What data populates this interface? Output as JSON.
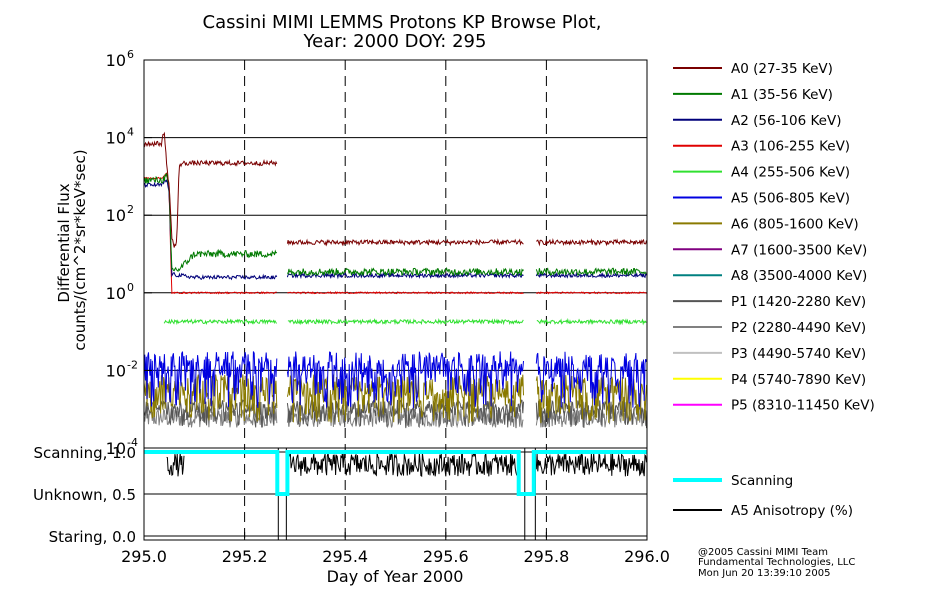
{
  "chart_data": [
    {
      "type": "line",
      "title": "Cassini MIMI LEMMS Protons KP Browse Plot,",
      "subtitle": "Year: 2000 DOY: 295",
      "ylabel_line1": "Differential Flux",
      "ylabel_line2": "counts/(cm^2*sr*keV*sec)",
      "xlim": [
        295.0,
        296.0
      ],
      "ylim": [
        0.0001,
        1000000
      ],
      "y_scale": "log",
      "y_ticks": [
        {
          "value": 0.0001,
          "base": "10",
          "exp": "-4"
        },
        {
          "value": 0.01,
          "base": "10",
          "exp": "-2"
        },
        {
          "value": 1,
          "base": "10",
          "exp": "0"
        },
        {
          "value": 100,
          "base": "10",
          "exp": "2"
        },
        {
          "value": 10000,
          "base": "10",
          "exp": "4"
        },
        {
          "value": 1000000,
          "base": "10",
          "exp": "6"
        }
      ],
      "grid": "horizontal at decades, dashed vertical at x ticks",
      "legend_position": "right",
      "data_gaps": [
        [
          295.265,
          295.285
        ],
        [
          295.755,
          295.78
        ]
      ],
      "series": [
        {
          "name": "A0 (27-35 KeV)",
          "color": "#7a0000",
          "x": [
            295.0,
            295.035,
            295.04,
            295.045,
            295.05,
            295.055,
            295.06,
            295.065,
            295.07,
            295.08,
            295.1,
            295.2,
            295.265,
            295.285,
            295.4,
            295.6,
            295.755,
            295.78,
            296.0
          ],
          "y": [
            7000,
            7000,
            16000,
            2000,
            600,
            30,
            15,
            20,
            2000,
            2200,
            2200,
            2200,
            2200,
            20,
            20,
            20,
            20,
            20,
            20
          ]
        },
        {
          "name": "A1 (35-56 KeV)",
          "color": "#007a00",
          "x": [
            295.0,
            295.035,
            295.045,
            295.05,
            295.055,
            295.07,
            295.1,
            295.2,
            295.265,
            295.285,
            295.4,
            295.6,
            295.755,
            295.78,
            296.0
          ],
          "y": [
            800,
            800,
            1000,
            500,
            4,
            4,
            10,
            10,
            10,
            3.5,
            3.5,
            3.5,
            3.5,
            3.5,
            3.5
          ]
        },
        {
          "name": "A2 (56-106 KeV)",
          "color": "#00007a",
          "x": [
            295.0,
            295.035,
            295.045,
            295.05,
            295.055,
            295.1,
            295.265,
            295.285,
            295.6,
            295.755,
            295.78,
            296.0
          ],
          "y": [
            600,
            600,
            800,
            400,
            3,
            2.5,
            2.5,
            2.8,
            2.8,
            2.8,
            2.8,
            2.8
          ]
        },
        {
          "name": "A3 (106-255 KeV)",
          "color": "#e00000",
          "x": [
            295.0,
            295.035,
            295.045,
            295.05,
            295.055,
            295.2,
            295.265,
            295.285,
            295.6,
            295.755,
            295.78,
            296.0
          ],
          "y": [
            900,
            900,
            1200,
            400,
            1.0,
            1.0,
            1.0,
            1.0,
            1.0,
            1.0,
            1.0,
            1.0
          ]
        },
        {
          "name": "A4 (255-506 KeV)",
          "color": "#30e030",
          "x": [
            295.04,
            295.265,
            295.285,
            295.755,
            295.78,
            296.0
          ],
          "y": [
            0.18,
            0.18,
            0.18,
            0.18,
            0.18,
            0.18
          ]
        },
        {
          "name": "A5 (506-805 KeV)",
          "color": "#0000e0",
          "x": [
            295.0,
            295.265,
            295.285,
            295.755,
            295.78,
            296.0
          ],
          "y": [
            0.01,
            0.01,
            0.01,
            0.01,
            0.01,
            0.01
          ]
        },
        {
          "name": "A6 (805-1600 KeV)",
          "color": "#8a7a00",
          "x": [
            295.0,
            295.265,
            295.285,
            295.755,
            295.78,
            296.0
          ],
          "y": [
            0.003,
            0.003,
            0.003,
            0.003,
            0.003,
            0.003
          ]
        },
        {
          "name": "A7 (1600-3500 KeV)",
          "color": "#800080",
          "x": [],
          "y": []
        },
        {
          "name": "A8 (3500-4000 KeV)",
          "color": "#008080",
          "x": [],
          "y": []
        },
        {
          "name": "P1 (1420-2280 KeV)",
          "color": "#555555",
          "x": [
            295.0,
            295.265,
            295.285,
            295.755,
            295.78,
            296.0
          ],
          "y": [
            0.001,
            0.001,
            0.001,
            0.001,
            0.001,
            0.001
          ]
        },
        {
          "name": "P2 (2280-4490 KeV)",
          "color": "#808080",
          "x": [
            295.0,
            295.265,
            295.285,
            295.755,
            295.78,
            296.0
          ],
          "y": [
            0.0006,
            0.0006,
            0.0006,
            0.0006,
            0.0006,
            0.0006
          ]
        },
        {
          "name": "P3 (4490-5740 KeV)",
          "color": "#c0c0c0",
          "x": [],
          "y": []
        },
        {
          "name": "P4 (5740-7890 KeV)",
          "color": "#ffff00",
          "x": [],
          "y": []
        },
        {
          "name": "P5 (8310-11450 KeV)",
          "color": "#ff00ff",
          "x": [],
          "y": []
        }
      ]
    },
    {
      "type": "line",
      "xlabel": "Day of Year 2000",
      "xlim": [
        295.0,
        296.0
      ],
      "ylim": [
        0.0,
        1.0
      ],
      "x_ticks": [
        "295.0",
        "295.2",
        "295.4",
        "295.6",
        "295.8",
        "296.0"
      ],
      "x_tick_values": [
        295.0,
        295.2,
        295.4,
        295.6,
        295.8,
        296.0
      ],
      "y_ticks": [
        {
          "value": 1.0,
          "label": "Scanning, 1.0"
        },
        {
          "value": 0.5,
          "label": "Unknown, 0.5"
        },
        {
          "value": 0.0,
          "label": "Staring, 0.0"
        }
      ],
      "legend_position": "right",
      "series": [
        {
          "name": "Scanning",
          "color": "#00ffff",
          "x": [
            295.0,
            295.265,
            295.265,
            295.285,
            295.285,
            295.745,
            295.745,
            295.775,
            295.775,
            296.0
          ],
          "y": [
            1.0,
            1.0,
            0.5,
            0.5,
            1.0,
            1.0,
            0.5,
            0.5,
            1.0,
            1.0
          ]
        },
        {
          "name": "A5 Anisotropy (%)",
          "color": "#000000",
          "x": [
            295.045,
            295.08,
            295.285,
            295.745,
            295.78,
            296.0
          ],
          "y": [
            0.85,
            0.85,
            0.85,
            0.85,
            0.85,
            0.85
          ]
        }
      ]
    }
  ],
  "credits": [
    "@2005 Cassini MIMI Team",
    "Fundamental Technologies, LLC",
    "Mon Jun 20 13:39:10 2005"
  ]
}
